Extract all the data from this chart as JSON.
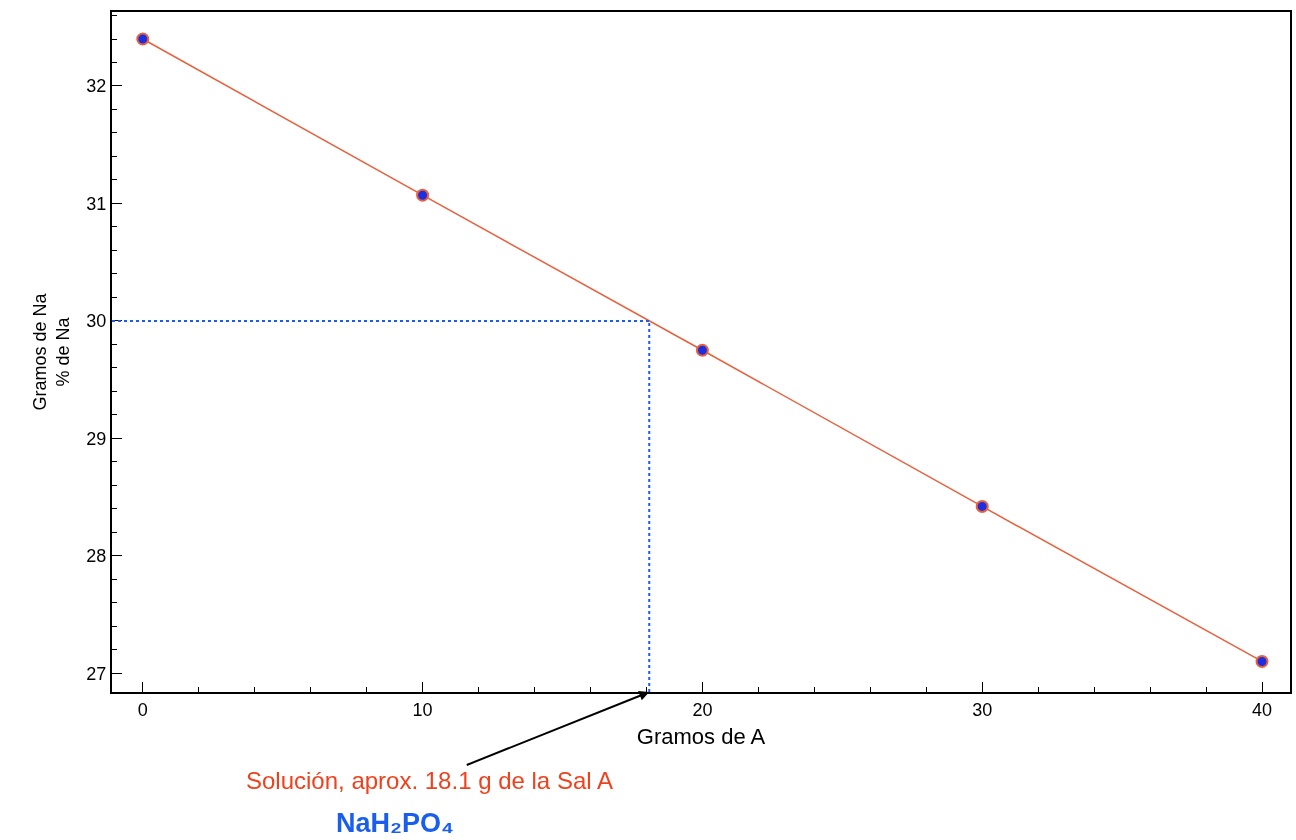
{
  "chart_data": {
    "type": "line",
    "xlabel": "Gramos de A",
    "ylabel": "Gramos de Na\n% de Na",
    "x": [
      0,
      10,
      20,
      30,
      40
    ],
    "series": [
      {
        "color": "#e8603c",
        "values": [
          32.4,
          31.07,
          29.75,
          28.42,
          27.1
        ]
      }
    ],
    "xlim": [
      -1.1,
      41
    ],
    "xticks": [
      0,
      10,
      20,
      30,
      40
    ],
    "ylim": [
      26.84,
      32.63
    ],
    "yticks": [
      27,
      28,
      29,
      30,
      31,
      32
    ],
    "marker": "circle",
    "line_style": "solid",
    "grid": false,
    "ref_lines": [
      {
        "axis": "y",
        "value": 30,
        "color": "#1a5ef0",
        "line_style": "dotted"
      },
      {
        "axis": "x",
        "value": 18.1,
        "color": "#1a5ef0",
        "line_style": "dotted"
      }
    ],
    "annotations": [
      {
        "text": "Solución, aprox. 18.1 g de la Sal A",
        "x": 18.1,
        "y": 26.84
      },
      "NaH₂PO₄"
    ]
  }
}
